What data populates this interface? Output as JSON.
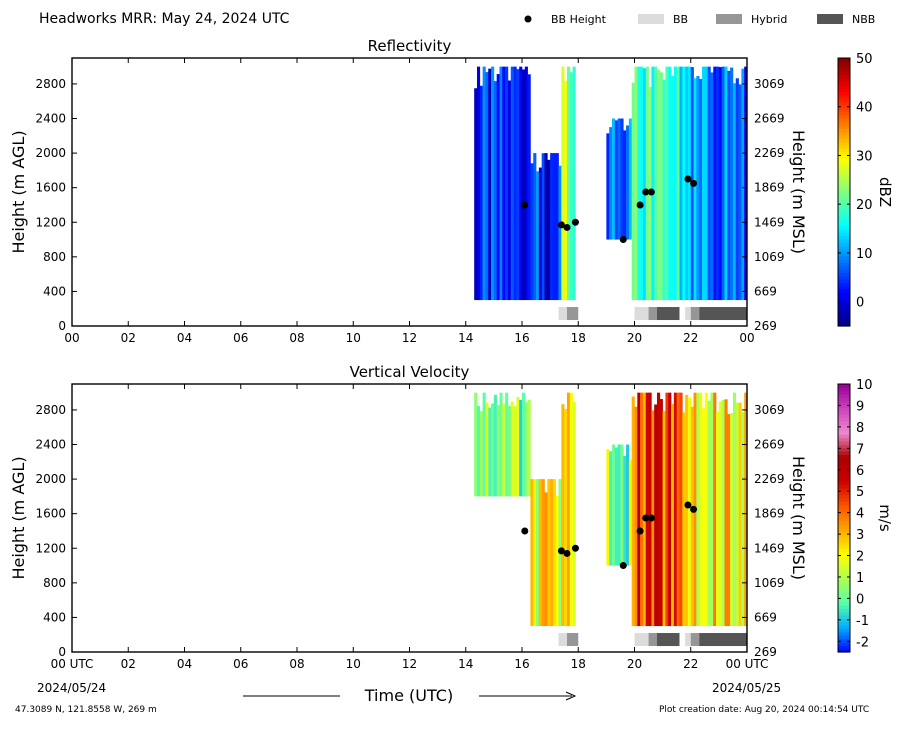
{
  "header": {
    "title": "Headworks MRR:  May 24, 2024 UTC",
    "legend": [
      {
        "type": "dot",
        "label": "BB Height",
        "color": "#000000"
      },
      {
        "type": "rect",
        "label": "BB",
        "color": "#dcdcdc"
      },
      {
        "type": "rect",
        "label": "Hybrid",
        "color": "#969696"
      },
      {
        "type": "rect",
        "label": "NBB",
        "color": "#555555"
      }
    ]
  },
  "footer": {
    "location": "47.3089 N, 121.8558 W, 269 m",
    "creation": "Plot creation date: Aug 20, 2024 00:14:54 UTC",
    "xlabel": "Time (UTC)",
    "start_date": "2024/05/24",
    "end_date": "2024/05/25"
  },
  "chart_data": [
    {
      "type": "heatmap",
      "title": "Reflectivity",
      "ylabel_left": "Height (m AGL)",
      "ylabel_right": "Height (m MSL)",
      "colorbar_label": "dBZ",
      "x_ticks": [
        "00",
        "02",
        "04",
        "06",
        "08",
        "10",
        "12",
        "14",
        "16",
        "18",
        "20",
        "22",
        "00"
      ],
      "xlim": [
        0,
        24
      ],
      "ylim": [
        0,
        3100
      ],
      "y_ticks_left": [
        0,
        400,
        800,
        1200,
        1600,
        2000,
        2400,
        2800
      ],
      "y_ticks_right": [
        269,
        669,
        1069,
        1469,
        1869,
        2269,
        2669,
        3069
      ],
      "colorbar_ticks": [
        0,
        10,
        20,
        30,
        40,
        50
      ],
      "colorbar_range": [
        -5,
        50
      ],
      "colorbar_colors": [
        "#00007f",
        "#0000ff",
        "#007fff",
        "#00ffff",
        "#7fff7f",
        "#ffff00",
        "#ff7f00",
        "#ff0000",
        "#7f0000"
      ],
      "precip_blocks": [
        {
          "x": [
            14.3,
            16.3
          ],
          "y_top": 3000,
          "y_bottom": 300,
          "value": 3
        },
        {
          "x": [
            16.3,
            17.4
          ],
          "y_top": 2000,
          "y_bottom": 300,
          "value": 4
        },
        {
          "x": [
            17.4,
            17.9
          ],
          "y_top": 3000,
          "y_bottom": 300,
          "value": 22
        },
        {
          "x": [
            19.0,
            19.9
          ],
          "y_top": 2400,
          "y_bottom": 1000,
          "value": 6
        },
        {
          "x": [
            19.9,
            21.8
          ],
          "y_top": 3000,
          "y_bottom": 300,
          "value": 18
        },
        {
          "x": [
            21.8,
            24.0
          ],
          "y_top": 3000,
          "y_bottom": 300,
          "value": 8
        }
      ],
      "bright_band_heights": [
        {
          "t": 16.1,
          "h": 1400
        },
        {
          "t": 17.4,
          "h": 1170
        },
        {
          "t": 17.6,
          "h": 1140
        },
        {
          "t": 17.9,
          "h": 1200
        },
        {
          "t": 19.6,
          "h": 1000
        },
        {
          "t": 20.2,
          "h": 1400
        },
        {
          "t": 20.4,
          "h": 1550
        },
        {
          "t": 20.6,
          "h": 1550
        },
        {
          "t": 21.9,
          "h": 1700
        },
        {
          "t": 22.1,
          "h": 1650
        }
      ],
      "bb_classification": [
        {
          "x": [
            17.3,
            17.6
          ],
          "class": "BB"
        },
        {
          "x": [
            17.6,
            18.0
          ],
          "class": "Hybrid"
        },
        {
          "x": [
            20.0,
            20.5
          ],
          "class": "BB"
        },
        {
          "x": [
            20.5,
            20.8
          ],
          "class": "Hybrid"
        },
        {
          "x": [
            20.8,
            21.6
          ],
          "class": "NBB"
        },
        {
          "x": [
            21.8,
            22.0
          ],
          "class": "BB"
        },
        {
          "x": [
            22.0,
            22.3
          ],
          "class": "Hybrid"
        },
        {
          "x": [
            22.3,
            24.0
          ],
          "class": "NBB"
        }
      ]
    },
    {
      "type": "heatmap",
      "title": "Vertical Velocity",
      "ylabel_left": "Height (m AGL)",
      "ylabel_right": "Height (m MSL)",
      "colorbar_label": "m/s",
      "x_ticks": [
        "00 UTC",
        "02",
        "04",
        "06",
        "08",
        "10",
        "12",
        "14",
        "16",
        "18",
        "20",
        "22",
        "00 UTC"
      ],
      "xlim": [
        0,
        24
      ],
      "ylim": [
        0,
        3100
      ],
      "y_ticks_left": [
        0,
        400,
        800,
        1200,
        1600,
        2000,
        2400,
        2800
      ],
      "y_ticks_right": [
        269,
        669,
        1069,
        1469,
        1869,
        2269,
        2669,
        3069
      ],
      "colorbar_ticks": [
        -2,
        -1,
        0,
        1,
        2,
        3,
        4,
        5,
        6,
        7,
        8,
        9,
        10
      ],
      "colorbar_range": [
        -2.5,
        10
      ],
      "colorbar_colors": [
        "#0000ff",
        "#00aaff",
        "#55ffaa",
        "#aaff55",
        "#ffff00",
        "#ffaa00",
        "#ff5500",
        "#cc0000",
        "#aa0000",
        "#ee88cc",
        "#cc44bb",
        "#990099"
      ],
      "precip_blocks": [
        {
          "x": [
            14.3,
            16.3
          ],
          "y_top": 3000,
          "y_bottom": 1800,
          "value": 0.7
        },
        {
          "x": [
            16.3,
            17.4
          ],
          "y_top": 2000,
          "y_bottom": 300,
          "value": 1.8
        },
        {
          "x": [
            17.4,
            17.9
          ],
          "y_top": 3000,
          "y_bottom": 300,
          "value": 3.2
        },
        {
          "x": [
            19.0,
            19.9
          ],
          "y_top": 2400,
          "y_bottom": 1000,
          "value": 0.8
        },
        {
          "x": [
            19.9,
            21.8
          ],
          "y_top": 3000,
          "y_bottom": 300,
          "value": 4.5
        },
        {
          "x": [
            21.8,
            24.0
          ],
          "y_top": 3000,
          "y_bottom": 300,
          "value": 2.5
        }
      ],
      "bright_band_heights": [
        {
          "t": 16.1,
          "h": 1400
        },
        {
          "t": 17.4,
          "h": 1170
        },
        {
          "t": 17.6,
          "h": 1140
        },
        {
          "t": 17.9,
          "h": 1200
        },
        {
          "t": 19.6,
          "h": 1000
        },
        {
          "t": 20.2,
          "h": 1400
        },
        {
          "t": 20.4,
          "h": 1550
        },
        {
          "t": 20.6,
          "h": 1550
        },
        {
          "t": 21.9,
          "h": 1700
        },
        {
          "t": 22.1,
          "h": 1650
        }
      ],
      "bb_classification": [
        {
          "x": [
            17.3,
            17.6
          ],
          "class": "BB"
        },
        {
          "x": [
            17.6,
            18.0
          ],
          "class": "Hybrid"
        },
        {
          "x": [
            20.0,
            20.5
          ],
          "class": "BB"
        },
        {
          "x": [
            20.5,
            20.8
          ],
          "class": "Hybrid"
        },
        {
          "x": [
            20.8,
            21.6
          ],
          "class": "NBB"
        },
        {
          "x": [
            21.8,
            22.0
          ],
          "class": "BB"
        },
        {
          "x": [
            22.0,
            22.3
          ],
          "class": "Hybrid"
        },
        {
          "x": [
            22.3,
            24.0
          ],
          "class": "NBB"
        }
      ]
    }
  ]
}
